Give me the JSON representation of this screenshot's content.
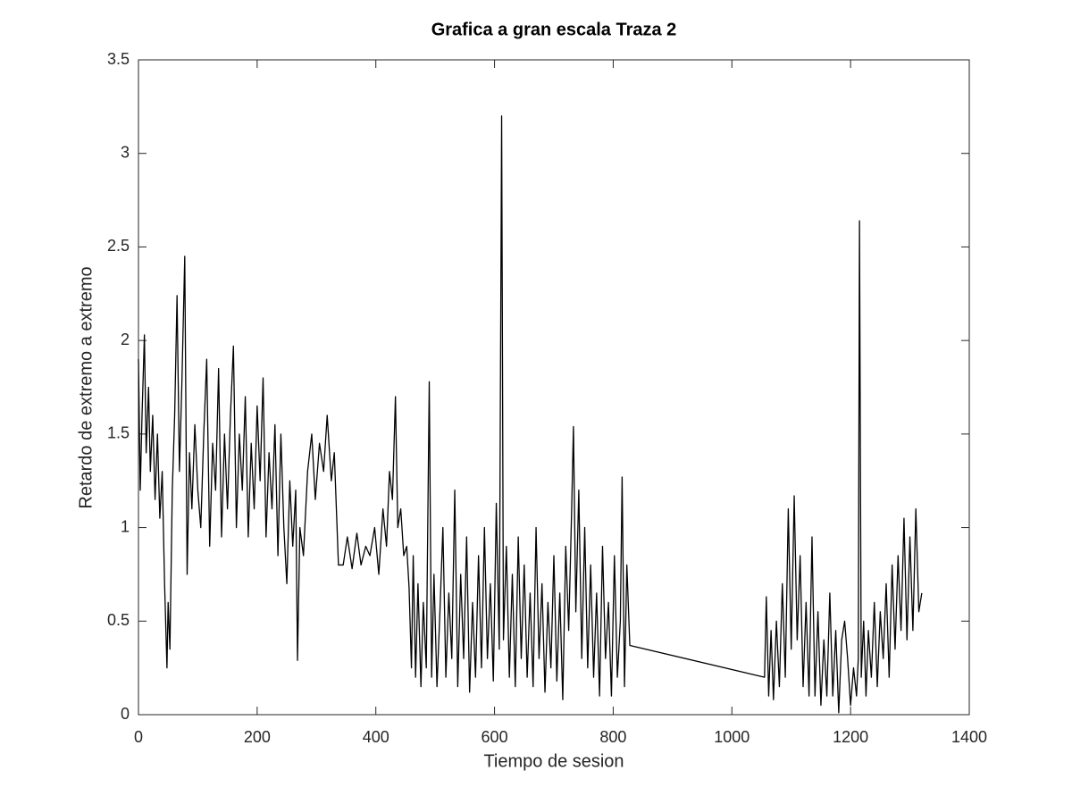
{
  "chart_data": {
    "type": "line",
    "title": "Grafica a gran escala Traza 2",
    "x_label": "Tiempo de sesion",
    "y_label": "Retardo de extremo a extremo",
    "color": "#000000",
    "x": [
      0,
      3,
      6,
      10,
      13,
      17,
      20,
      24,
      28,
      32,
      36,
      40,
      44,
      48,
      50,
      53,
      57,
      61,
      65,
      69,
      73,
      78,
      82,
      86,
      90,
      95,
      100,
      105,
      110,
      115,
      120,
      125,
      130,
      135,
      140,
      145,
      150,
      155,
      160,
      165,
      170,
      175,
      180,
      185,
      190,
      195,
      200,
      205,
      210,
      215,
      220,
      225,
      230,
      235,
      240,
      245,
      250,
      255,
      260,
      265,
      268,
      272,
      278,
      285,
      292,
      298,
      305,
      312,
      318,
      325,
      330,
      337,
      345,
      352,
      360,
      368,
      375,
      383,
      390,
      398,
      405,
      412,
      418,
      423,
      428,
      433,
      437,
      442,
      447,
      452,
      456,
      460,
      463,
      467,
      471,
      476,
      480,
      485,
      490,
      494,
      498,
      503,
      508,
      513,
      518,
      523,
      528,
      533,
      538,
      543,
      548,
      553,
      558,
      563,
      568,
      573,
      578,
      583,
      588,
      593,
      598,
      603,
      608,
      612,
      615,
      620,
      625,
      630,
      635,
      640,
      645,
      650,
      655,
      660,
      665,
      670,
      675,
      680,
      685,
      690,
      695,
      700,
      705,
      710,
      715,
      720,
      725,
      730,
      733,
      737,
      742,
      747,
      752,
      757,
      762,
      767,
      772,
      777,
      782,
      787,
      792,
      797,
      802,
      807,
      812,
      815,
      819,
      823,
      828,
      1055,
      1058,
      1062,
      1066,
      1070,
      1075,
      1080,
      1085,
      1090,
      1095,
      1100,
      1105,
      1110,
      1115,
      1120,
      1125,
      1130,
      1135,
      1140,
      1145,
      1150,
      1155,
      1160,
      1165,
      1170,
      1175,
      1180,
      1185,
      1190,
      1195,
      1200,
      1205,
      1210,
      1213,
      1215,
      1218,
      1222,
      1226,
      1230,
      1235,
      1240,
      1245,
      1250,
      1255,
      1260,
      1265,
      1270,
      1275,
      1280,
      1285,
      1290,
      1295,
      1300,
      1305,
      1310,
      1315,
      1320
    ],
    "values": [
      1.9,
      1.2,
      1.6,
      2.03,
      1.4,
      1.75,
      1.3,
      1.6,
      1.15,
      1.5,
      1.05,
      1.3,
      0.7,
      0.25,
      0.6,
      0.35,
      1.2,
      1.6,
      2.24,
      1.3,
      1.75,
      2.45,
      0.75,
      1.4,
      1.1,
      1.55,
      1.2,
      1.0,
      1.5,
      1.9,
      0.9,
      1.45,
      1.2,
      1.85,
      0.95,
      1.5,
      1.1,
      1.6,
      1.97,
      1.0,
      1.5,
      1.2,
      1.7,
      0.95,
      1.45,
      1.1,
      1.65,
      1.25,
      1.8,
      0.95,
      1.4,
      1.1,
      1.55,
      0.85,
      1.5,
      1.0,
      0.7,
      1.25,
      0.9,
      1.2,
      0.29,
      1.0,
      0.85,
      1.3,
      1.5,
      1.15,
      1.45,
      1.3,
      1.6,
      1.25,
      1.4,
      0.8,
      0.8,
      0.95,
      0.78,
      0.97,
      0.8,
      0.9,
      0.85,
      1.0,
      0.75,
      1.1,
      0.9,
      1.3,
      1.15,
      1.7,
      1.0,
      1.1,
      0.85,
      0.9,
      0.68,
      0.25,
      0.85,
      0.2,
      0.7,
      0.15,
      0.6,
      0.25,
      1.78,
      0.2,
      0.75,
      0.15,
      0.55,
      1.0,
      0.2,
      0.65,
      0.3,
      1.2,
      0.15,
      0.75,
      0.3,
      0.95,
      0.12,
      0.6,
      0.2,
      0.85,
      0.25,
      1.0,
      0.3,
      0.7,
      0.18,
      1.13,
      0.35,
      3.2,
      0.4,
      0.9,
      0.2,
      0.75,
      0.15,
      0.95,
      0.3,
      0.8,
      0.2,
      0.65,
      0.15,
      1.0,
      0.3,
      0.7,
      0.12,
      0.6,
      0.25,
      0.85,
      0.18,
      0.65,
      0.08,
      0.9,
      0.45,
      1.1,
      1.54,
      0.55,
      1.2,
      0.3,
      1.0,
      0.25,
      0.8,
      0.2,
      0.65,
      0.1,
      0.9,
      0.3,
      0.6,
      0.1,
      0.85,
      0.2,
      0.5,
      1.27,
      0.15,
      0.8,
      0.37,
      0.2,
      0.63,
      0.1,
      0.45,
      0.08,
      0.5,
      0.15,
      0.7,
      0.2,
      1.1,
      0.35,
      1.17,
      0.4,
      0.85,
      0.15,
      0.6,
      0.1,
      0.95,
      0.1,
      0.55,
      0.05,
      0.4,
      0.1,
      0.65,
      0.1,
      0.45,
      0.01,
      0.4,
      0.5,
      0.3,
      0.05,
      0.25,
      0.1,
      0.3,
      2.64,
      0.2,
      0.5,
      0.1,
      0.45,
      0.2,
      0.6,
      0.15,
      0.55,
      0.3,
      0.7,
      0.2,
      0.8,
      0.35,
      0.85,
      0.45,
      1.05,
      0.4,
      0.95,
      0.45,
      1.1,
      0.55,
      0.65
    ],
    "xlim": [
      0,
      1400
    ],
    "xticks": [
      0,
      200,
      400,
      600,
      800,
      1000,
      1200,
      1400
    ],
    "ylim": [
      0,
      3.5
    ],
    "yticks": [
      0,
      0.5,
      1,
      1.5,
      2,
      2.5,
      3,
      3.5
    ],
    "grid": false
  }
}
